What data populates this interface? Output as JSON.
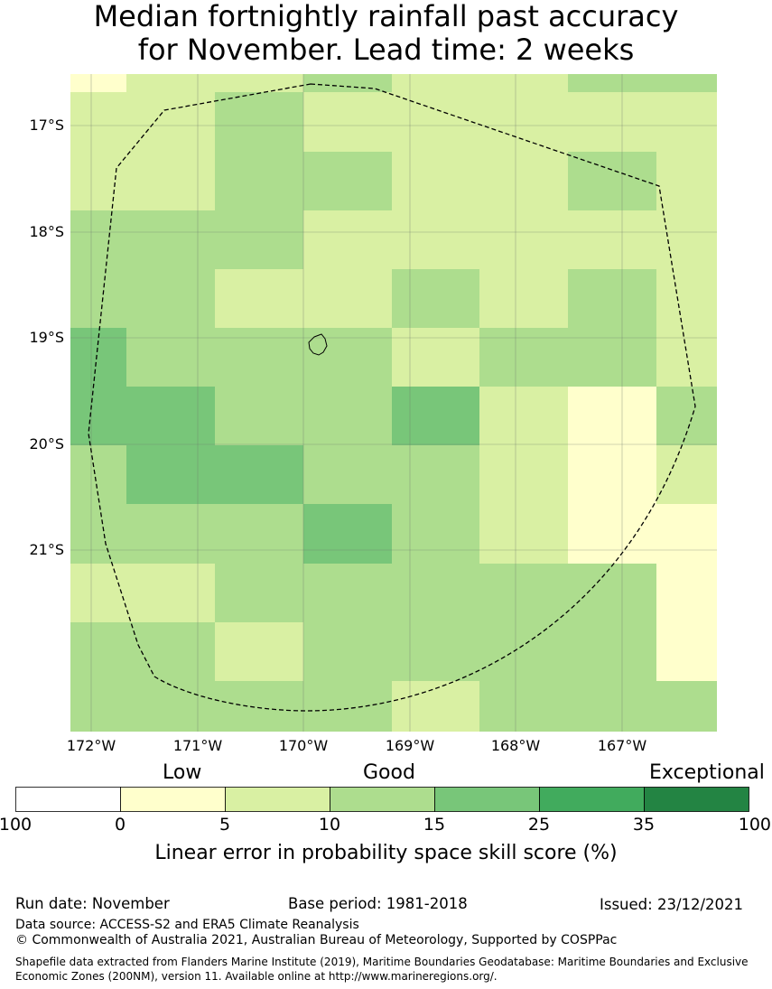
{
  "title": {
    "line1": "Median fortnightly rainfall past accuracy",
    "line2": "for November. Lead time: 2 weeks"
  },
  "map": {
    "lat_labels": [
      "17°S",
      "18°S",
      "19°S",
      "20°S",
      "21°S"
    ],
    "lon_labels": [
      "172°W",
      "171°W",
      "170°W",
      "169°W",
      "168°W",
      "167°W"
    ],
    "lat_values": [
      -17,
      -18,
      -19,
      -20,
      -21
    ],
    "lon_values": [
      -172,
      -171,
      -170,
      -169,
      -168,
      -167
    ],
    "colors": {
      "none": "#ffffff",
      "low": "#ffffcc",
      "c5": "#d9f0a3",
      "c10": "#addd8e",
      "c15": "#78c679",
      "c25": "#41ab5d",
      "c35": "#238443"
    },
    "grid_rows": [
      [
        "low",
        "c5",
        "c5",
        "c10",
        "c5",
        "c5",
        "c10",
        "c10"
      ],
      [
        "c5",
        "c5",
        "c10",
        "c5",
        "c5",
        "c5",
        "c5",
        "c5"
      ],
      [
        "c5",
        "c5",
        "c10",
        "c10",
        "c5",
        "c5",
        "c10",
        "c5"
      ],
      [
        "c10",
        "c10",
        "c10",
        "c5",
        "c5",
        "c5",
        "c5",
        "c5"
      ],
      [
        "c10",
        "c10",
        "c5",
        "c5",
        "c10",
        "c5",
        "c10",
        "c5"
      ],
      [
        "c15",
        "c10",
        "c10",
        "c10",
        "c5",
        "c10",
        "c10",
        "c5"
      ],
      [
        "c15",
        "c15",
        "c10",
        "c10",
        "c15",
        "c5",
        "low",
        "c10"
      ],
      [
        "c10",
        "c15",
        "c15",
        "c10",
        "c10",
        "c5",
        "low",
        "c5"
      ],
      [
        "c10",
        "c10",
        "c10",
        "c15",
        "c10",
        "c5",
        "low",
        "low"
      ],
      [
        "c5",
        "c5",
        "c10",
        "c10",
        "c10",
        "c10",
        "c10",
        "low"
      ],
      [
        "c10",
        "c10",
        "c5",
        "c10",
        "c10",
        "c10",
        "c10",
        "low"
      ],
      [
        "c10",
        "c10",
        "c10",
        "c10",
        "c5",
        "c10",
        "c10",
        "c10"
      ]
    ]
  },
  "legend": {
    "categories": [
      "Low",
      "Good",
      "Exceptional"
    ],
    "ticks": [
      "100",
      "0",
      "5",
      "10",
      "15",
      "25",
      "35",
      "100"
    ],
    "colors": [
      "#ffffff",
      "#ffffcc",
      "#d9f0a3",
      "#addd8e",
      "#78c679",
      "#41ab5d",
      "#238443"
    ],
    "title": "Linear error in probability space skill score (%)"
  },
  "info": {
    "run_date": "Run date: November",
    "base_period": "Base period: 1981-2018",
    "issued": "Issued: 23/12/2021",
    "data_source": "Data source: ACCESS-S2 and ERA5 Climate Reanalysis",
    "copyright": "© Commonwealth of Australia 2021, Australian Bureau of Meteorology, Supported by COSPPac",
    "shapefile_line1": "Shapefile data extracted from Flanders Marine Institute (2019), Maritime Boundaries Geodatabase: Maritime Boundaries and Exclusive",
    "shapefile_line2": "Economic Zones (200NM), version 11. Available online at http://www.marineregions.org/."
  }
}
